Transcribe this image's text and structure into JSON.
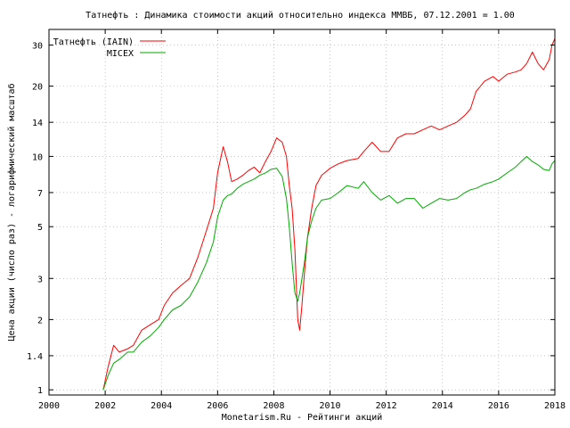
{
  "chart_data": {
    "type": "line",
    "title": "Татнефть : Динамика стоимости акций относительно индекса ММВБ, 07.12.2001 = 1.00",
    "xlabel": "Monetarism.Ru - Рейтинги акций",
    "ylabel": "Цена акции (число раз) - логарифмический масштаб",
    "xlim": [
      2000,
      2018
    ],
    "ylim": [
      0.95,
      35
    ],
    "y_scale": "log",
    "grid": true,
    "legend_position": "top-left",
    "x_ticks": [
      "2000",
      "2002",
      "2004",
      "2006",
      "2008",
      "2010",
      "2012",
      "2014",
      "2016",
      "2018"
    ],
    "y_ticks": [
      "1",
      "1.4",
      "2",
      "3",
      "5",
      "7",
      "10",
      "14",
      "20",
      "30"
    ],
    "x_tick_values": [
      2000,
      2002,
      2004,
      2006,
      2008,
      2010,
      2012,
      2014,
      2016,
      2018
    ],
    "y_tick_values": [
      1,
      1.4,
      2,
      3,
      5,
      7,
      10,
      14,
      20,
      30
    ],
    "series": [
      {
        "name": "Татнефть (IAIN)",
        "color": "#ff0000",
        "x": [
          2001.93,
          2002.1,
          2002.3,
          2002.5,
          2002.8,
          2003.0,
          2003.3,
          2003.6,
          2003.9,
          2004.1,
          2004.4,
          2004.7,
          2005.0,
          2005.3,
          2005.6,
          2005.85,
          2006.0,
          2006.2,
          2006.35,
          2006.5,
          2006.7,
          2006.9,
          2007.1,
          2007.3,
          2007.5,
          2007.7,
          2007.9,
          2008.1,
          2008.3,
          2008.45,
          2008.55,
          2008.65,
          2008.75,
          2008.85,
          2008.92,
          2009.0,
          2009.1,
          2009.2,
          2009.35,
          2009.5,
          2009.7,
          2010.0,
          2010.3,
          2010.6,
          2011.0,
          2011.2,
          2011.5,
          2011.8,
          2012.1,
          2012.4,
          2012.7,
          2013.0,
          2013.3,
          2013.6,
          2013.9,
          2014.2,
          2014.5,
          2014.8,
          2015.0,
          2015.2,
          2015.5,
          2015.8,
          2016.0,
          2016.3,
          2016.6,
          2016.8,
          2017.0,
          2017.2,
          2017.4,
          2017.6,
          2017.8,
          2017.9,
          2018.0
        ],
        "values": [
          1.0,
          1.25,
          1.55,
          1.45,
          1.5,
          1.55,
          1.8,
          1.9,
          2.0,
          2.3,
          2.6,
          2.8,
          3.0,
          3.7,
          4.8,
          6.0,
          8.5,
          11.0,
          9.5,
          7.8,
          8.0,
          8.3,
          8.7,
          9.0,
          8.5,
          9.5,
          10.5,
          12.0,
          11.5,
          10.0,
          7.5,
          6.0,
          4.0,
          2.0,
          1.8,
          2.3,
          3.3,
          4.5,
          6.0,
          7.5,
          8.3,
          8.9,
          9.3,
          9.6,
          9.8,
          10.5,
          11.5,
          10.5,
          10.5,
          12.0,
          12.5,
          12.5,
          13.0,
          13.5,
          13.0,
          13.5,
          14.0,
          15.0,
          16.0,
          19.0,
          21.0,
          22.0,
          21.0,
          22.5,
          23.0,
          23.5,
          25.0,
          28.0,
          25.0,
          23.5,
          26.0,
          30.0,
          32.0
        ]
      },
      {
        "name": "MICEX",
        "color": "#00aa00",
        "x": [
          2001.93,
          2002.1,
          2002.3,
          2002.5,
          2002.8,
          2003.0,
          2003.3,
          2003.6,
          2003.9,
          2004.1,
          2004.4,
          2004.7,
          2005.0,
          2005.3,
          2005.6,
          2005.85,
          2006.0,
          2006.2,
          2006.35,
          2006.5,
          2006.7,
          2006.9,
          2007.1,
          2007.3,
          2007.5,
          2007.7,
          2007.9,
          2008.1,
          2008.3,
          2008.45,
          2008.55,
          2008.65,
          2008.75,
          2008.85,
          2008.92,
          2009.0,
          2009.1,
          2009.2,
          2009.35,
          2009.5,
          2009.7,
          2010.0,
          2010.3,
          2010.6,
          2011.0,
          2011.2,
          2011.5,
          2011.8,
          2012.1,
          2012.4,
          2012.7,
          2013.0,
          2013.3,
          2013.6,
          2013.9,
          2014.2,
          2014.5,
          2014.8,
          2015.0,
          2015.2,
          2015.5,
          2015.8,
          2016.0,
          2016.3,
          2016.6,
          2016.8,
          2017.0,
          2017.2,
          2017.4,
          2017.6,
          2017.8,
          2017.9,
          2018.0
        ],
        "values": [
          1.0,
          1.15,
          1.3,
          1.35,
          1.45,
          1.45,
          1.6,
          1.7,
          1.85,
          2.0,
          2.2,
          2.3,
          2.5,
          2.9,
          3.5,
          4.3,
          5.5,
          6.5,
          6.8,
          6.9,
          7.3,
          7.6,
          7.8,
          8.0,
          8.3,
          8.5,
          8.8,
          8.9,
          8.2,
          6.6,
          5.0,
          3.5,
          2.6,
          2.4,
          2.6,
          3.0,
          3.6,
          4.5,
          5.3,
          6.0,
          6.5,
          6.6,
          7.0,
          7.5,
          7.3,
          7.8,
          7.0,
          6.5,
          6.8,
          6.3,
          6.6,
          6.6,
          6.0,
          6.3,
          6.6,
          6.5,
          6.6,
          7.0,
          7.2,
          7.3,
          7.6,
          7.8,
          8.0,
          8.5,
          9.0,
          9.5,
          10.0,
          9.5,
          9.2,
          8.8,
          8.7,
          9.3,
          9.6
        ]
      }
    ]
  }
}
